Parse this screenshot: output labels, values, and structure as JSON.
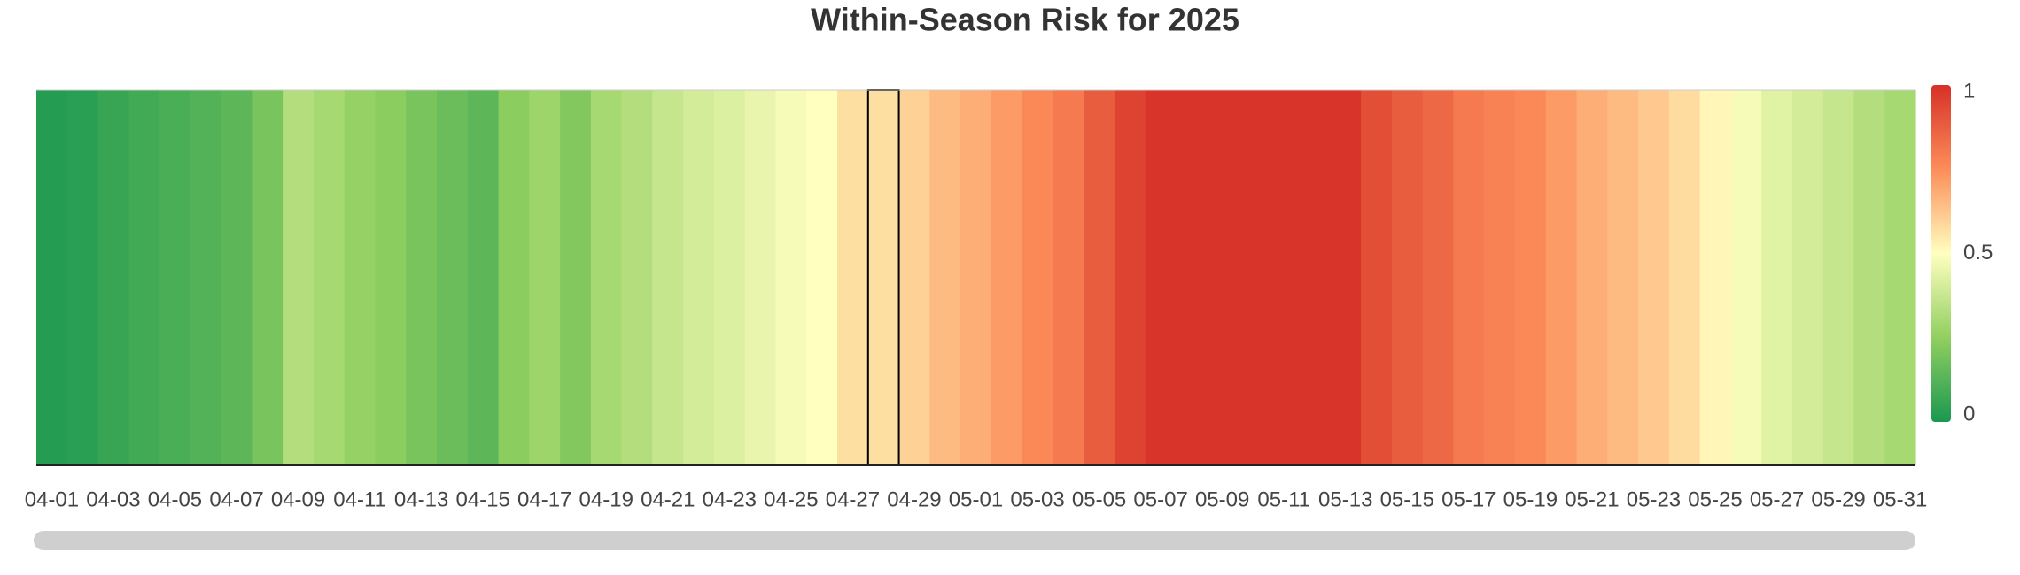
{
  "chart_data": {
    "type": "heatmap",
    "title": "Within-Season Risk for 2025",
    "categories": [
      "04-01",
      null,
      "04-03",
      null,
      "04-05",
      null,
      "04-07",
      null,
      "04-09",
      null,
      "04-11",
      null,
      "04-13",
      null,
      "04-15",
      null,
      "04-17",
      null,
      "04-19",
      null,
      "04-21",
      null,
      "04-23",
      null,
      "04-25",
      null,
      "04-27",
      null,
      "04-29",
      null,
      "05-01",
      null,
      "05-03",
      null,
      "05-05",
      null,
      "05-07",
      null,
      "05-09",
      null,
      "05-11",
      null,
      "05-13",
      null,
      "05-15",
      null,
      "05-17",
      null,
      "05-19",
      null,
      "05-21",
      null,
      "05-23",
      null,
      "05-25",
      null,
      "05-27",
      null,
      "05-29",
      null,
      "05-31"
    ],
    "values": [
      0.02,
      0.03,
      0.06,
      0.08,
      0.1,
      0.12,
      0.14,
      0.2,
      0.33,
      0.3,
      0.26,
      0.24,
      0.2,
      0.17,
      0.14,
      0.24,
      0.28,
      0.22,
      0.3,
      0.33,
      0.37,
      0.4,
      0.42,
      0.45,
      0.48,
      0.5,
      0.57,
      0.57,
      0.6,
      0.65,
      0.68,
      0.72,
      0.76,
      0.8,
      0.88,
      0.95,
      0.99,
      0.99,
      0.99,
      0.99,
      0.99,
      0.99,
      0.99,
      0.92,
      0.88,
      0.85,
      0.8,
      0.78,
      0.76,
      0.72,
      0.68,
      0.65,
      0.62,
      0.58,
      0.52,
      0.48,
      0.43,
      0.4,
      0.37,
      0.33,
      0.3
    ],
    "zlim": [
      0,
      1
    ],
    "colorbar_ticks": [
      0,
      0.5,
      1
    ],
    "colorscale": [
      [
        0,
        "#1a9850"
      ],
      [
        0.25,
        "#91cf60"
      ],
      [
        0.5,
        "#ffffbf"
      ],
      [
        0.75,
        "#fc8d59"
      ],
      [
        1,
        "#d73027"
      ]
    ],
    "selected_index": 27
  }
}
